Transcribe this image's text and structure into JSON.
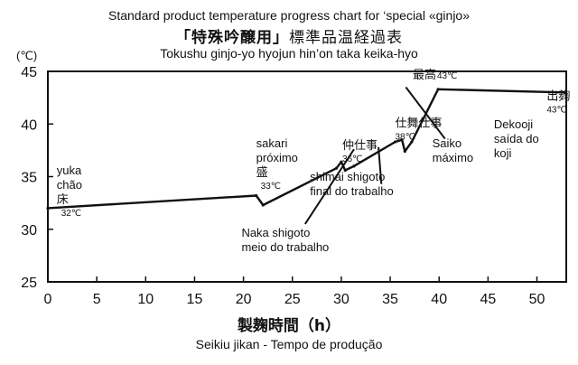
{
  "chart_data": {
    "type": "line",
    "title": "Standard product temperature progress chart for ‘special «ginjo»",
    "title_jp_main": "「特殊吟醸用」",
    "title_jp_rest": "標準品温経過表",
    "title_romaji": "Tokushu ginjo-yo hyojun hin’on taka keika-hyo",
    "xlabel": "製麹時間（h）",
    "xlabel_sub": "Seikiu jikan - Tempo de produção",
    "y_unit": "(℃)",
    "xlim": [
      0,
      53
    ],
    "ylim": [
      25,
      45
    ],
    "xticks": [
      0,
      5,
      10,
      15,
      20,
      25,
      30,
      35,
      40,
      45,
      50
    ],
    "yticks": [
      25,
      30,
      35,
      40,
      45
    ],
    "series": [
      {
        "name": "product temperature",
        "x": [
          0,
          21.3,
          22,
          29.5,
          30,
          30.4,
          31.3,
          35.5,
          36.2,
          36.5,
          37.2,
          39.9,
          52.8
        ],
        "y": [
          32,
          33.2,
          32.3,
          35.8,
          36.4,
          35.6,
          36,
          38.3,
          38.5,
          37.4,
          38.3,
          43.3,
          43
        ]
      }
    ],
    "annotations": [
      {
        "id": "yuka",
        "lines": [
          "yuka",
          "chão",
          "床"
        ],
        "temp": "32℃",
        "x": 0.9,
        "y": 35.2
      },
      {
        "id": "sakari",
        "lines": [
          "sakari",
          "próximo",
          "盛"
        ],
        "temp": "33℃",
        "x": 21.3,
        "y": 37.8
      },
      {
        "id": "naka-shigoto",
        "lines": [
          "仲仕事"
        ],
        "temp": "36℃",
        "x": 30.1,
        "y": 37.6
      },
      {
        "id": "shimai-shigoto",
        "lines": [
          "仕舞仕事"
        ],
        "temp": "38℃",
        "x": 35.5,
        "y": 39.7
      },
      {
        "id": "saiko",
        "lines": [
          "最高"
        ],
        "temp": "43℃",
        "x": 37.3,
        "y": 44.3
      },
      {
        "id": "dekooji",
        "lines": [
          "出麹"
        ],
        "temp": "43℃",
        "x": 51,
        "y": 42.3
      }
    ],
    "callouts": [
      {
        "id": "naka-shigoto-note",
        "lines": [
          "Naka shigoto",
          "meio do trabalho"
        ],
        "x": 19.8,
        "y": 29.3,
        "from": [
          26.3,
          30.5
        ],
        "to": [
          31.3,
          37.6
        ]
      },
      {
        "id": "shimai-shigoto-note",
        "lines": [
          "shimai shigoto",
          "final do trabalho"
        ],
        "x": 26.8,
        "y": 34.6,
        "from": [
          33.8,
          37.8
        ],
        "to": [
          34.1,
          34.3
        ]
      },
      {
        "id": "saiko-note",
        "lines": [
          "Saiko",
          "máximo"
        ],
        "x": 39.3,
        "y": 37.8,
        "from": [
          36.6,
          43.5
        ],
        "to": [
          40.6,
          38.6
        ]
      },
      {
        "id": "dekooji-note",
        "lines": [
          "Dekooji",
          "saída do",
          "koji"
        ],
        "x": 45.6,
        "y": 39.6,
        "from": null,
        "to": null
      }
    ],
    "grid": false
  }
}
